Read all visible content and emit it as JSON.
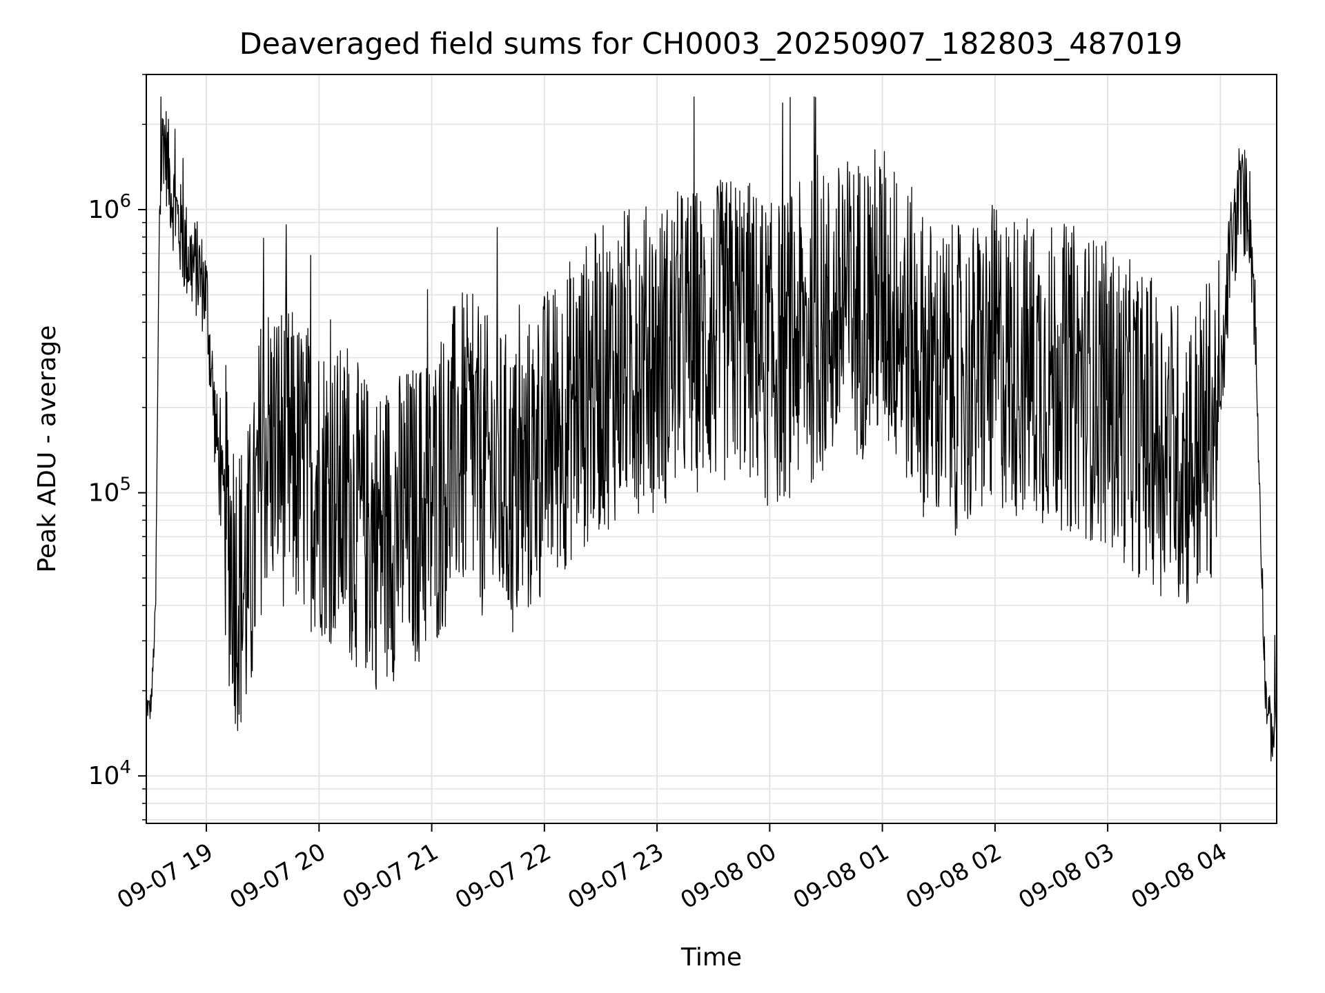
{
  "chart_data": {
    "type": "line",
    "title": "Deaveraged field sums for CH0003_20250907_182803_487019",
    "xlabel": "Time",
    "ylabel": "Peak ADU - average",
    "yscale": "log",
    "grid": true,
    "line_color": "#000000",
    "xlim": [
      "2025-09-07 18:28",
      "2025-09-08 04:30"
    ],
    "ylim": [
      6800,
      3000000
    ],
    "x_ticks": [
      "09-07 19",
      "09-07 20",
      "09-07 21",
      "09-07 22",
      "09-07 23",
      "09-08 00",
      "09-08 01",
      "09-08 02",
      "09-08 03",
      "09-08 04"
    ],
    "y_ticks": [
      {
        "value": 10000,
        "base": "10",
        "exp": "4"
      },
      {
        "value": 100000,
        "base": "10",
        "exp": "5"
      },
      {
        "value": 1000000,
        "base": "10",
        "exp": "6"
      }
    ],
    "series": [
      {
        "x": [
          "2025-09-07 18:28",
          "2025-09-07 18:30",
          "2025-09-07 18:31",
          "2025-09-07 18:33",
          "2025-09-07 18:35",
          "2025-09-07 18:37",
          "2025-09-07 18:39",
          "2025-09-07 18:42",
          "2025-09-07 18:45",
          "2025-09-07 18:48",
          "2025-09-07 18:52",
          "2025-09-07 18:56",
          "2025-09-07 19:00",
          "2025-09-07 19:04",
          "2025-09-07 19:08",
          "2025-09-07 19:12",
          "2025-09-07 19:16",
          "2025-09-07 19:20",
          "2025-09-07 19:25",
          "2025-09-07 19:30",
          "2025-09-07 19:40",
          "2025-09-07 19:50",
          "2025-09-07 20:00",
          "2025-09-07 20:15",
          "2025-09-07 20:30",
          "2025-09-07 20:45",
          "2025-09-07 21:00",
          "2025-09-07 21:15",
          "2025-09-07 21:30",
          "2025-09-07 21:45",
          "2025-09-07 22:00",
          "2025-09-07 22:15",
          "2025-09-07 22:30",
          "2025-09-07 22:45",
          "2025-09-07 23:00",
          "2025-09-07 23:15",
          "2025-09-07 23:30",
          "2025-09-07 23:45",
          "2025-09-08 00:00",
          "2025-09-08 00:15",
          "2025-09-08 00:30",
          "2025-09-08 00:45",
          "2025-09-08 01:00",
          "2025-09-08 01:10",
          "2025-09-08 01:20",
          "2025-09-08 01:30",
          "2025-09-08 01:45",
          "2025-09-08 02:00",
          "2025-09-08 02:15",
          "2025-09-08 02:30",
          "2025-09-08 02:45",
          "2025-09-08 03:00",
          "2025-09-08 03:15",
          "2025-09-08 03:30",
          "2025-09-08 03:45",
          "2025-09-08 04:00",
          "2025-09-08 04:05",
          "2025-09-08 04:10",
          "2025-09-08 04:15",
          "2025-09-08 04:18",
          "2025-09-08 04:21",
          "2025-09-08 04:24",
          "2025-09-08 04:27",
          "2025-09-08 04:30"
        ],
        "y": [
          18000,
          17000,
          20000,
          40000,
          1000000,
          1900000,
          1500000,
          1100000,
          900000,
          750000,
          650000,
          600000,
          500000,
          200000,
          100000,
          70000,
          50000,
          45000,
          60000,
          150000,
          140000,
          120000,
          110000,
          90000,
          70000,
          80000,
          90000,
          150000,
          120000,
          100000,
          150000,
          200000,
          250000,
          300000,
          300000,
          350000,
          350000,
          400000,
          300000,
          350000,
          400000,
          450000,
          500000,
          400000,
          300000,
          250000,
          250000,
          300000,
          280000,
          260000,
          250000,
          220000,
          180000,
          150000,
          130000,
          200000,
          700000,
          1000000,
          1100000,
          500000,
          100000,
          20000,
          14000,
          15000
        ]
      }
    ]
  }
}
